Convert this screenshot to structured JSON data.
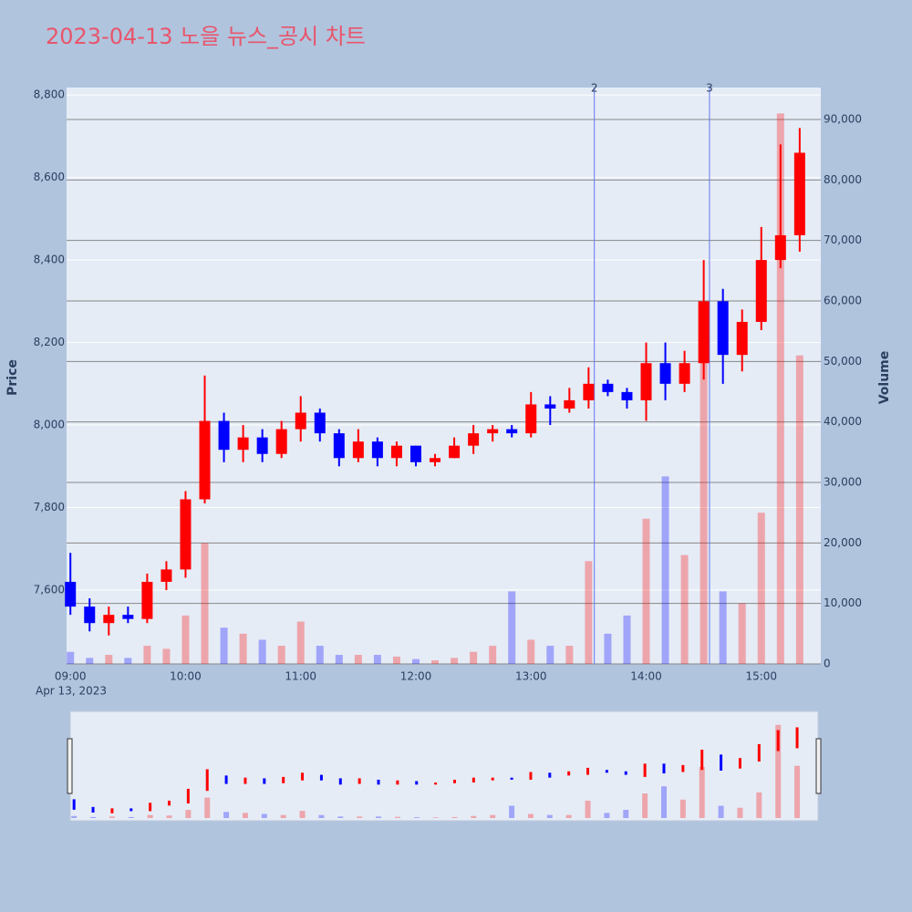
{
  "chart_data": {
    "type": "candlestick",
    "title": "2023-04-13 노을 뉴스_공시 차트",
    "ylabel": "Price",
    "y2label": "Volume",
    "x_date_label": "Apr 13, 2023",
    "x": [
      "09:00",
      "09:10",
      "09:20",
      "09:30",
      "09:40",
      "09:50",
      "10:00",
      "10:10",
      "10:20",
      "10:30",
      "10:40",
      "10:50",
      "11:00",
      "11:10",
      "11:20",
      "11:30",
      "11:40",
      "11:50",
      "12:00",
      "12:10",
      "12:20",
      "12:30",
      "12:40",
      "12:50",
      "13:00",
      "13:10",
      "13:20",
      "13:30",
      "13:40",
      "13:50",
      "14:00",
      "14:10",
      "14:20",
      "14:30",
      "14:40",
      "14:50",
      "15:00",
      "15:10",
      "15:20"
    ],
    "open": [
      7620,
      7560,
      7520,
      7540,
      7530,
      7620,
      7650,
      7820,
      8010,
      7940,
      7970,
      7930,
      7990,
      8030,
      7980,
      7920,
      7960,
      7920,
      7950,
      7910,
      7920,
      7950,
      7980,
      7990,
      7980,
      8050,
      8040,
      8060,
      8100,
      8080,
      8060,
      8150,
      8100,
      8150,
      8300,
      8170,
      8250,
      8400,
      8460
    ],
    "high": [
      7690,
      7580,
      7560,
      7560,
      7640,
      7670,
      7840,
      8120,
      8030,
      8000,
      7990,
      8010,
      8070,
      8040,
      7990,
      7990,
      7970,
      7960,
      7950,
      7930,
      7970,
      8000,
      8000,
      8000,
      8080,
      8070,
      8090,
      8140,
      8110,
      8090,
      8200,
      8200,
      8180,
      8400,
      8330,
      8280,
      8480,
      8680,
      8720
    ],
    "low": [
      7540,
      7500,
      7490,
      7520,
      7520,
      7600,
      7630,
      7810,
      7910,
      7910,
      7910,
      7920,
      7960,
      7960,
      7900,
      7910,
      7900,
      7900,
      7900,
      7900,
      7920,
      7930,
      7960,
      7970,
      7970,
      8000,
      8030,
      8040,
      8070,
      8040,
      8010,
      8060,
      8080,
      8110,
      8100,
      8130,
      8230,
      8380,
      8420
    ],
    "close": [
      7560,
      7520,
      7540,
      7530,
      7620,
      7650,
      7820,
      8010,
      7940,
      7970,
      7930,
      7990,
      8030,
      7980,
      7920,
      7960,
      7920,
      7950,
      7910,
      7920,
      7950,
      7980,
      7990,
      7980,
      8050,
      8040,
      8060,
      8100,
      8080,
      8060,
      8150,
      8100,
      8150,
      8300,
      8170,
      8250,
      8400,
      8460,
      8660
    ],
    "volume": [
      2000,
      1000,
      1500,
      1000,
      3000,
      2500,
      8000,
      20000,
      6000,
      5000,
      4000,
      3000,
      7000,
      3000,
      1500,
      1500,
      1500,
      1200,
      800,
      600,
      1000,
      2000,
      3000,
      12000,
      4000,
      3000,
      3000,
      17000,
      5000,
      8000,
      24000,
      31000,
      18000,
      50000,
      12000,
      10000,
      25000,
      91000,
      51000
    ],
    "up_color": "#ff0000",
    "down_color": "#0000ff",
    "xlim": [
      "08:58",
      "15:31"
    ],
    "xticks": [
      "09:00",
      "10:00",
      "11:00",
      "12:00",
      "13:00",
      "14:00",
      "15:00"
    ],
    "ylim": [
      7421,
      8818
    ],
    "yticks": [
      {
        "value": 7600,
        "label": "7,600"
      },
      {
        "value": 7800,
        "label": "7,800"
      },
      {
        "value": 8000,
        "label": "8,000"
      },
      {
        "value": 8200,
        "label": "8,200"
      },
      {
        "value": 8400,
        "label": "8,400"
      },
      {
        "value": 8600,
        "label": "8,600"
      },
      {
        "value": 8800,
        "label": "8,800"
      }
    ],
    "y2lim": [
      0,
      95280
    ],
    "y2ticks": [
      0,
      {
        "value": 10000,
        "label": "10,000"
      },
      {
        "value": 20000,
        "label": "20,000"
      },
      {
        "value": 30000,
        "label": "30,000"
      },
      {
        "value": 40000,
        "label": "40,000"
      },
      {
        "value": 50000,
        "label": "50,000"
      },
      {
        "value": 60000,
        "label": "60,000"
      },
      {
        "value": 70000,
        "label": "70,000"
      },
      {
        "value": 80000,
        "label": "80,000"
      },
      {
        "value": 90000,
        "label": "90,000"
      }
    ],
    "events": [
      {
        "x": "13:33",
        "label": "2"
      },
      {
        "x": "14:33",
        "label": "3"
      }
    ],
    "grid": true
  }
}
